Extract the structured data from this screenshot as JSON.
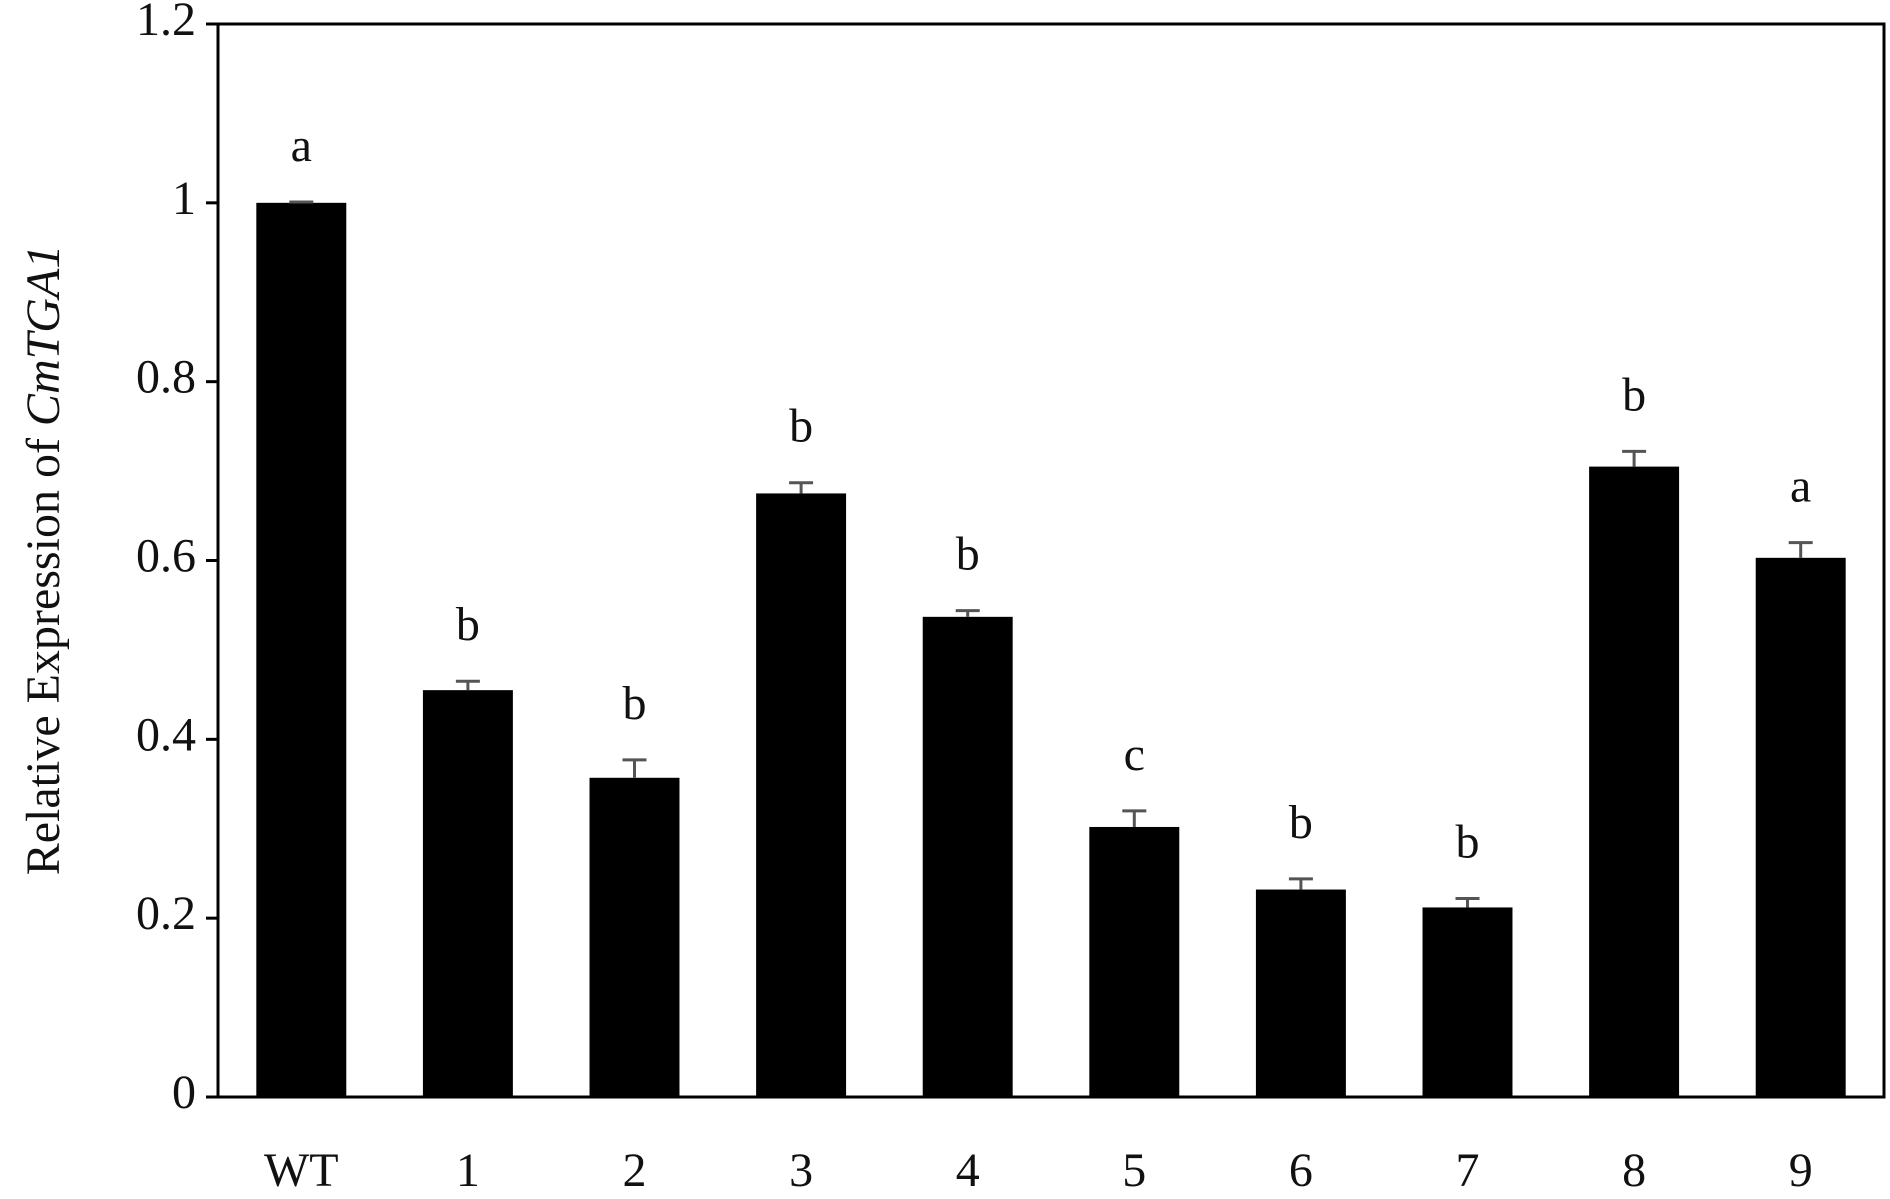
{
  "chart_data": {
    "type": "bar",
    "ylabel": "Relative Expression of ",
    "ylabel_gene": "CmTGA1",
    "categories": [
      "WT",
      "1",
      "2",
      "3",
      "4",
      "5",
      "6",
      "7",
      "8",
      "9"
    ],
    "values": [
      1.0,
      0.455,
      0.357,
      0.675,
      0.537,
      0.302,
      0.232,
      0.212,
      0.705,
      0.603
    ],
    "errors": [
      0.001,
      0.01,
      0.02,
      0.012,
      0.007,
      0.018,
      0.012,
      0.01,
      0.017,
      0.017
    ],
    "annotations": [
      "a",
      "b",
      "b",
      "b",
      "b",
      "c",
      "b",
      "b",
      "b",
      "a"
    ],
    "color": "#000000",
    "error_color": "#555555",
    "ylim": [
      0,
      1.2
    ],
    "yticks": [
      0,
      0.2,
      0.4,
      0.6,
      0.8,
      1,
      1.2
    ]
  }
}
